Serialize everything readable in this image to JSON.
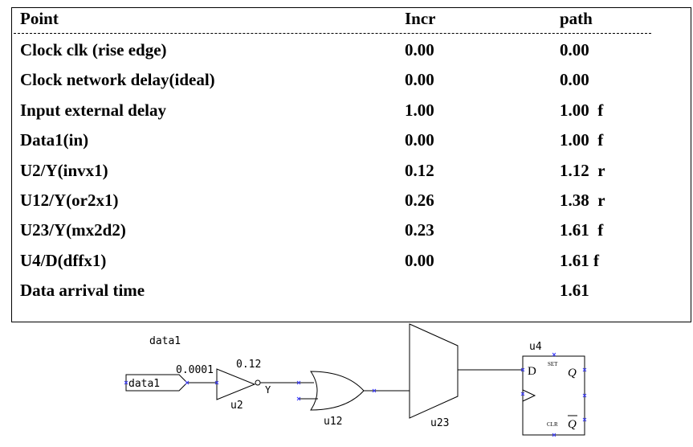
{
  "table": {
    "headers": {
      "point": "Point",
      "incr": "Incr",
      "path": "path"
    },
    "rows": [
      {
        "point": "Clock clk (rise edge)",
        "incr": "0.00",
        "path": "0.00"
      },
      {
        "point": "Clock network delay(ideal)",
        "incr": "0.00",
        "path": "0.00"
      },
      {
        "point": "Input external delay",
        "incr": "1.00",
        "path": "1.00  f"
      },
      {
        "point": "Data1(in)",
        "incr": "0.00",
        "path": "1.00  f"
      },
      {
        "point": "U2/Y(invx1)",
        "incr": "0.12",
        "path": "1.12  r"
      },
      {
        "point": "U12/Y(or2x1)",
        "incr": "0.26",
        "path": "1.38  r"
      },
      {
        "point": "U23/Y(mx2d2)",
        "incr": "0.23",
        "path": "1.61  f"
      },
      {
        "point": "U4/D(dffx1)",
        "incr": "0.00",
        "path": "1.61 f"
      },
      {
        "point": "Data arrival time",
        "incr": "",
        "path": "1.61"
      }
    ]
  },
  "schematic": {
    "net_label": "data1",
    "port_label": "data1",
    "wire_delay": "0.0001",
    "inverter_delay": "0.12",
    "inverter_pin": "Y",
    "inverter_name": "u2",
    "or_name": "u12",
    "mux_name": "u23",
    "ff_name": "u4",
    "ff_d": "D",
    "ff_set": "SET",
    "ff_q": "Q",
    "ff_clr": "CLR",
    "ff_qbar": "Q"
  }
}
